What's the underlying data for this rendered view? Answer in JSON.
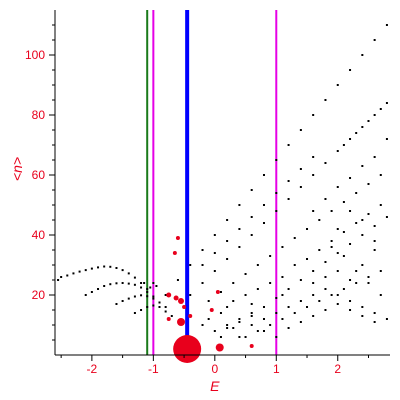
{
  "chart_data": {
    "type": "scatter",
    "xlabel": "E",
    "ylabel": "<n>",
    "xlim": [
      -2.6,
      2.85
    ],
    "ylim": [
      0,
      115
    ],
    "xticks": [
      -2,
      -1,
      0,
      1,
      2
    ],
    "yticks": [
      20,
      40,
      60,
      80,
      100
    ],
    "x_tick_labels": [
      "-2",
      "-1",
      "0",
      "1",
      "2"
    ],
    "y_tick_labels": [
      "20",
      "40",
      "60",
      "80",
      "100"
    ],
    "colors": {
      "text": "#e8001c",
      "points": "#000000",
      "highlight": "#e8001c",
      "green_line": "#1a7a1a",
      "magenta_line": "#e600e6",
      "blue_line": "#0000ff"
    },
    "vertical_lines": [
      {
        "x": -1.1,
        "color": "#1a7a1a"
      },
      {
        "x": -1.0,
        "color": "#e600e6"
      },
      {
        "x": -0.45,
        "color": "#0000ff"
      },
      {
        "x": 1.0,
        "color": "#e600e6"
      }
    ],
    "highlight_points": [
      {
        "x": -0.45,
        "y": 2,
        "r": 14
      },
      {
        "x": 0.08,
        "y": 2.5,
        "r": 4
      },
      {
        "x": -0.55,
        "y": 11,
        "r": 4
      },
      {
        "x": -0.55,
        "y": 18,
        "r": 3
      },
      {
        "x": -0.75,
        "y": 20,
        "r": 2.5
      },
      {
        "x": -0.63,
        "y": 19,
        "r": 2.5
      },
      {
        "x": -0.5,
        "y": 16,
        "r": 2
      },
      {
        "x": -0.6,
        "y": 39,
        "r": 2
      },
      {
        "x": -0.65,
        "y": 34,
        "r": 2
      },
      {
        "x": -0.4,
        "y": 13,
        "r": 2
      },
      {
        "x": 0.05,
        "y": 21,
        "r": 2
      },
      {
        "x": -0.05,
        "y": 15,
        "r": 2
      },
      {
        "x": -0.75,
        "y": 12,
        "r": 2
      },
      {
        "x": 0.6,
        "y": 3,
        "r": 2
      }
    ],
    "series": [
      {
        "values": [
          [
            -2.55,
            25
          ],
          [
            -2.5,
            26
          ],
          [
            -2.4,
            26.5
          ],
          [
            -2.3,
            27.2
          ],
          [
            -2.2,
            27.8
          ],
          [
            -2.1,
            28.3
          ],
          [
            -2.0,
            28.8
          ],
          [
            -1.9,
            29.2
          ],
          [
            -1.8,
            29.5
          ],
          [
            -1.7,
            29.4
          ],
          [
            -1.6,
            29.0
          ],
          [
            -1.5,
            28.3
          ],
          [
            -1.4,
            27.2
          ],
          [
            -1.3,
            25.8
          ],
          [
            -1.2,
            24.0
          ],
          [
            -1.1,
            22.0
          ],
          [
            -2.1,
            20
          ],
          [
            -2.0,
            21
          ],
          [
            -1.9,
            22
          ],
          [
            -1.8,
            23
          ],
          [
            -1.7,
            23.6
          ],
          [
            -1.6,
            23.9
          ],
          [
            -1.5,
            24.0
          ],
          [
            -1.4,
            23.8
          ],
          [
            -1.3,
            23.4
          ],
          [
            -1.2,
            22.5
          ],
          [
            -1.1,
            21.0
          ],
          [
            -1.0,
            19.5
          ],
          [
            -1.6,
            17
          ],
          [
            -1.5,
            18
          ],
          [
            -1.4,
            18.8
          ],
          [
            -1.3,
            19.5
          ],
          [
            -1.2,
            19.9
          ],
          [
            -1.1,
            19.6
          ],
          [
            -1.0,
            18.8
          ],
          [
            -0.9,
            17.5
          ],
          [
            -0.8,
            16.0
          ],
          [
            -1.3,
            14
          ],
          [
            -1.2,
            15
          ],
          [
            -1.1,
            16
          ],
          [
            -1.0,
            16.5
          ],
          [
            -0.9,
            16
          ],
          [
            -0.8,
            14.5
          ],
          [
            -0.7,
            13
          ],
          [
            -1.15,
            24
          ],
          [
            -1.05,
            22.5
          ],
          [
            -1.0,
            24
          ],
          [
            -0.95,
            23
          ]
        ]
      },
      {
        "values": [
          [
            -0.8,
            20
          ],
          [
            -0.6,
            25
          ],
          [
            -0.4,
            30
          ],
          [
            -0.2,
            35
          ],
          [
            0.0,
            40
          ],
          [
            0.2,
            45
          ],
          [
            0.4,
            50
          ],
          [
            0.6,
            55
          ],
          [
            0.8,
            60
          ],
          [
            1.0,
            65
          ],
          [
            1.2,
            70
          ],
          [
            1.4,
            75
          ],
          [
            1.6,
            80
          ],
          [
            1.8,
            85
          ],
          [
            2.0,
            90
          ],
          [
            2.2,
            95
          ],
          [
            2.4,
            100
          ],
          [
            2.6,
            105
          ],
          [
            2.8,
            110
          ]
        ]
      },
      {
        "values": [
          [
            -0.4,
            20
          ],
          [
            -0.2,
            24
          ],
          [
            0.0,
            28
          ],
          [
            0.2,
            32
          ],
          [
            0.4,
            36
          ],
          [
            0.6,
            40
          ],
          [
            0.8,
            44
          ],
          [
            1.0,
            48
          ],
          [
            1.2,
            52
          ],
          [
            1.4,
            56
          ],
          [
            1.6,
            60
          ],
          [
            1.8,
            64
          ],
          [
            2.0,
            68
          ],
          [
            2.2,
            72
          ],
          [
            2.4,
            76
          ],
          [
            2.6,
            80
          ],
          [
            2.8,
            84
          ]
        ]
      },
      {
        "values": [
          [
            -0.1,
            18
          ],
          [
            0.1,
            21
          ],
          [
            0.3,
            24
          ],
          [
            0.5,
            27
          ],
          [
            0.7,
            30
          ],
          [
            0.9,
            33
          ],
          [
            1.1,
            36
          ],
          [
            1.3,
            39
          ],
          [
            1.5,
            42
          ],
          [
            1.7,
            45
          ],
          [
            1.9,
            48
          ],
          [
            2.1,
            51
          ],
          [
            2.3,
            54
          ],
          [
            2.5,
            57
          ],
          [
            2.7,
            60
          ]
        ]
      },
      {
        "values": [
          [
            -0.2,
            30
          ],
          [
            0.0,
            34
          ],
          [
            0.2,
            38
          ],
          [
            0.4,
            42
          ],
          [
            0.6,
            46
          ],
          [
            0.8,
            50
          ],
          [
            1.0,
            54
          ],
          [
            1.2,
            58
          ],
          [
            1.4,
            62
          ],
          [
            1.6,
            66
          ]
        ]
      },
      {
        "values": [
          [
            0.2,
            10
          ],
          [
            0.4,
            12
          ],
          [
            0.6,
            14
          ],
          [
            0.8,
            16
          ],
          [
            1.0,
            19
          ],
          [
            1.2,
            22
          ],
          [
            1.4,
            25
          ],
          [
            1.6,
            28
          ],
          [
            1.8,
            31
          ],
          [
            2.0,
            34
          ],
          [
            2.2,
            37
          ],
          [
            2.4,
            40
          ],
          [
            2.6,
            43
          ],
          [
            2.8,
            46
          ]
        ]
      },
      {
        "values": [
          [
            0.5,
            6
          ],
          [
            0.7,
            8
          ],
          [
            0.9,
            10
          ],
          [
            1.1,
            12
          ],
          [
            1.3,
            14
          ],
          [
            1.5,
            16
          ],
          [
            1.7,
            18
          ],
          [
            1.9,
            20
          ],
          [
            2.1,
            22
          ],
          [
            2.3,
            24
          ],
          [
            2.5,
            26
          ],
          [
            2.7,
            28
          ]
        ]
      },
      {
        "values": [
          [
            0.0,
            8
          ],
          [
            0.2,
            9
          ],
          [
            0.4,
            11
          ],
          [
            0.6,
            13
          ],
          [
            0.8,
            12
          ],
          [
            1.0,
            14
          ],
          [
            1.2,
            16
          ],
          [
            1.4,
            18
          ],
          [
            1.6,
            20
          ],
          [
            1.8,
            22
          ],
          [
            2.0,
            20
          ],
          [
            2.2,
            18
          ],
          [
            2.4,
            16
          ],
          [
            2.6,
            14
          ],
          [
            2.8,
            12
          ],
          [
            1.3,
            30
          ],
          [
            1.5,
            32
          ],
          [
            1.7,
            35
          ],
          [
            1.9,
            38
          ],
          [
            2.1,
            41
          ],
          [
            2.3,
            44
          ],
          [
            2.5,
            47
          ],
          [
            2.7,
            50
          ],
          [
            1.6,
            48
          ],
          [
            1.8,
            52
          ],
          [
            2.0,
            56
          ],
          [
            2.2,
            59
          ],
          [
            2.4,
            63
          ],
          [
            2.6,
            66
          ],
          [
            2.1,
            70
          ],
          [
            2.3,
            74
          ],
          [
            2.5,
            78
          ],
          [
            2.7,
            82
          ],
          [
            2.8,
            72
          ],
          [
            2.6,
            35
          ],
          [
            2.4,
            30
          ],
          [
            2.2,
            25
          ],
          [
            2.0,
            28
          ],
          [
            1.8,
            26
          ],
          [
            1.6,
            24
          ],
          [
            1.9,
            36
          ],
          [
            2.1,
            33
          ],
          [
            2.3,
            28
          ],
          [
            2.5,
            24
          ],
          [
            2.7,
            20
          ],
          [
            2.6,
            38
          ],
          [
            2.4,
            45
          ],
          [
            2.2,
            48
          ],
          [
            2.0,
            42
          ],
          [
            0.3,
            18
          ],
          [
            0.5,
            20
          ],
          [
            0.7,
            22
          ],
          [
            0.9,
            24
          ],
          [
            1.1,
            26
          ],
          [
            0.4,
            6
          ],
          [
            0.6,
            10
          ],
          [
            0.8,
            8
          ],
          [
            1.0,
            6
          ],
          [
            1.2,
            9
          ],
          [
            1.4,
            11
          ],
          [
            1.6,
            13
          ],
          [
            1.8,
            15
          ],
          [
            2.0,
            17
          ],
          [
            2.2,
            15
          ],
          [
            2.4,
            13
          ],
          [
            2.6,
            11
          ],
          [
            -0.1,
            12
          ],
          [
            0.1,
            14
          ],
          [
            0.3,
            9
          ],
          [
            0.1,
            6
          ],
          [
            -0.2,
            10
          ],
          [
            0.2,
            16
          ],
          [
            0.6,
            17
          ],
          [
            1.1,
            20
          ]
        ]
      }
    ]
  }
}
